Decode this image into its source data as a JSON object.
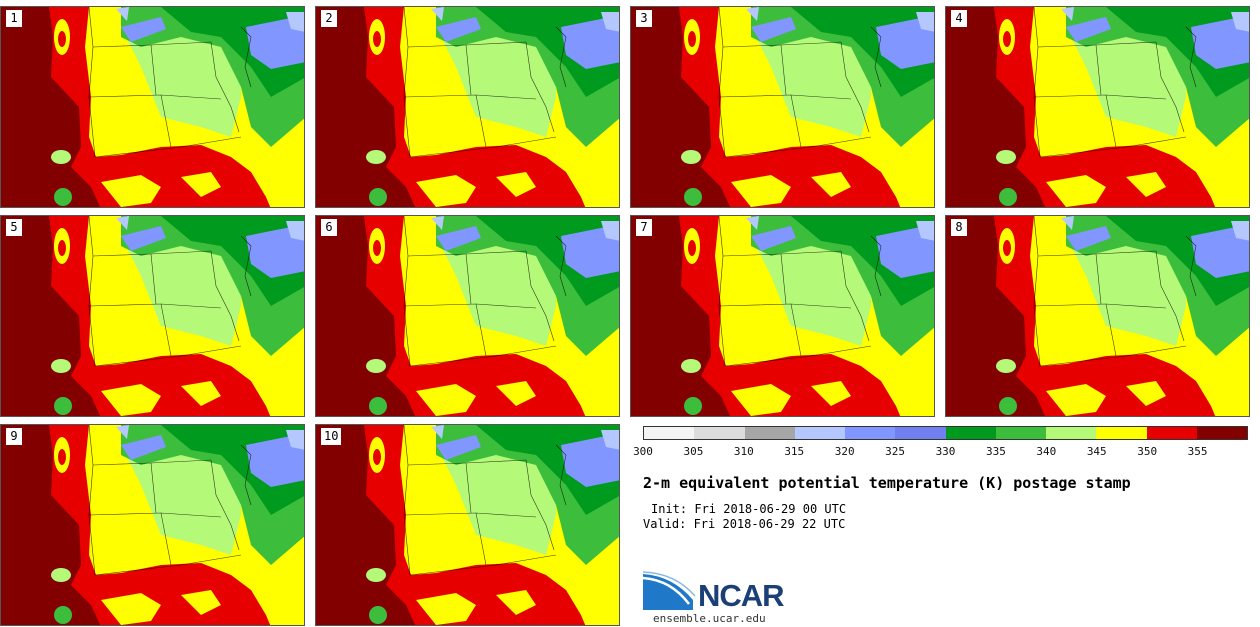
{
  "members": [
    "1",
    "2",
    "3",
    "4",
    "5",
    "6",
    "7",
    "8",
    "9",
    "10"
  ],
  "colorbar": {
    "colors": [
      "#f4f4f4",
      "#dcdcdc",
      "#a6a6a6",
      "#b4c8ff",
      "#8296ff",
      "#7080f0",
      "#009a1e",
      "#3cbe3c",
      "#b4fa78",
      "#ffff00",
      "#e60000",
      "#820000"
    ],
    "ticks": [
      "300",
      "305",
      "310",
      "315",
      "320",
      "325",
      "330",
      "335",
      "340",
      "345",
      "350",
      "355"
    ]
  },
  "title": "2-m equivalent potential temperature (K) postage stamp",
  "init": "Init: Fri 2018-06-29 00 UTC",
  "valid": "Valid: Fri 2018-06-29 22 UTC",
  "logo": {
    "text": "NCAR",
    "website": "ensemble.ucar.edu"
  }
}
